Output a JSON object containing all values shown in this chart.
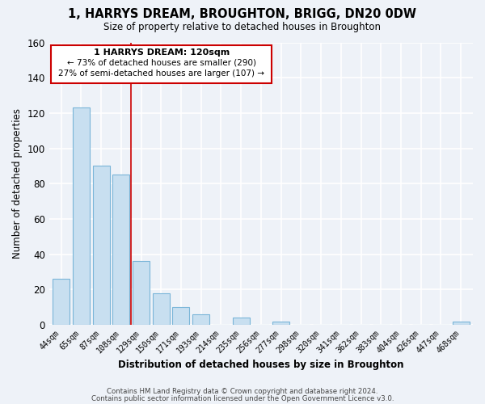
{
  "title": "1, HARRYS DREAM, BROUGHTON, BRIGG, DN20 0DW",
  "subtitle": "Size of property relative to detached houses in Broughton",
  "xlabel": "Distribution of detached houses by size in Broughton",
  "ylabel": "Number of detached properties",
  "bar_labels": [
    "44sqm",
    "65sqm",
    "87sqm",
    "108sqm",
    "129sqm",
    "150sqm",
    "171sqm",
    "193sqm",
    "214sqm",
    "235sqm",
    "256sqm",
    "277sqm",
    "298sqm",
    "320sqm",
    "341sqm",
    "362sqm",
    "383sqm",
    "404sqm",
    "426sqm",
    "447sqm",
    "468sqm"
  ],
  "bar_values": [
    26,
    123,
    90,
    85,
    36,
    18,
    10,
    6,
    0,
    4,
    0,
    2,
    0,
    0,
    0,
    0,
    0,
    0,
    0,
    0,
    2
  ],
  "bar_color": "#c8dff0",
  "bar_edge_color": "#7ab5d8",
  "ylim": [
    0,
    160
  ],
  "yticks": [
    0,
    20,
    40,
    60,
    80,
    100,
    120,
    140,
    160
  ],
  "annotation_title": "1 HARRYS DREAM: 120sqm",
  "annotation_line1": "← 73% of detached houses are smaller (290)",
  "annotation_line2": "27% of semi-detached houses are larger (107) →",
  "annotation_box_color": "#ffffff",
  "annotation_box_edge_color": "#cc0000",
  "property_line_x": 3.5,
  "footer1": "Contains HM Land Registry data © Crown copyright and database right 2024.",
  "footer2": "Contains public sector information licensed under the Open Government Licence v3.0.",
  "background_color": "#eef2f8",
  "grid_color": "#ffffff",
  "spine_color": "#aaaacc"
}
